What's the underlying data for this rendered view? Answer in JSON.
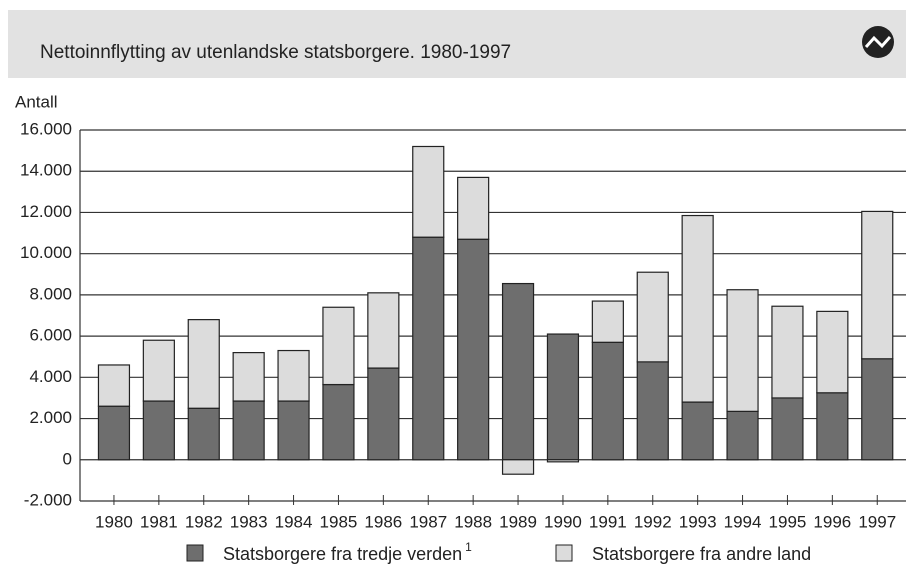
{
  "chart_data": {
    "type": "stacked_bar",
    "title": "Nettoinnflytting av utenlandske statsborgere. 1980-1997",
    "y_label": "Antall",
    "categories": [
      "1980",
      "1981",
      "1982",
      "1983",
      "1984",
      "1985",
      "1986",
      "1987",
      "1988",
      "1989",
      "1990",
      "1991",
      "1992",
      "1993",
      "1994",
      "1995",
      "1996",
      "1997"
    ],
    "series": [
      {
        "name": "Statsborgere fra tredje verden",
        "color": "#6e6e6e",
        "values": [
          2600,
          2850,
          2500,
          2850,
          2850,
          3650,
          4450,
          10800,
          10700,
          8550,
          6100,
          5700,
          4750,
          2800,
          2350,
          3000,
          3250,
          4900
        ]
      },
      {
        "name": "Statsborgere fra andre land",
        "color": "#dcdcdc",
        "values": [
          2000,
          2950,
          4300,
          2350,
          2450,
          3750,
          3650,
          4400,
          3000,
          -700,
          -100,
          2000,
          4350,
          9050,
          5900,
          4450,
          3950,
          7150
        ]
      }
    ],
    "legend_footnote": "1",
    "ylim": [
      -2000,
      16000
    ],
    "yticks": [
      {
        "value": -2000,
        "label": "-2.000"
      },
      0,
      {
        "value": 2000,
        "label": "2.000"
      },
      {
        "value": 4000,
        "label": "4.000"
      },
      {
        "value": 6000,
        "label": "6.000"
      },
      {
        "value": 8000,
        "label": "8.000"
      },
      {
        "value": 10000,
        "label": "10.000"
      },
      {
        "value": 12000,
        "label": "12.000"
      },
      {
        "value": 14000,
        "label": "14.000"
      },
      {
        "value": 16000,
        "label": "16.000"
      }
    ],
    "grid": true
  }
}
